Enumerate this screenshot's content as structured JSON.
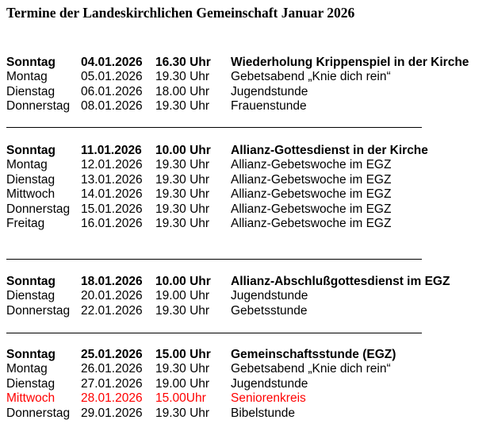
{
  "title": "Termine der Landeskirchlichen Gemeinschaft Januar 2026",
  "highlight_color": "#ff0000",
  "sections": [
    {
      "rows": [
        {
          "day": "Sonntag",
          "date": "04.01.2026",
          "time": "16.30 Uhr",
          "event": "Wiederholung Krippenspiel in der Kirche",
          "bold": true
        },
        {
          "day": "Montag",
          "date": "05.01.2026",
          "time": "19.30 Uhr",
          "event": "Gebetsabend „Knie dich rein“"
        },
        {
          "day": "Dienstag",
          "date": "06.01.2026",
          "time": "18.00 Uhr",
          "event": "Jugendstunde"
        },
        {
          "day": "Donnerstag",
          "date": "08.01.2026",
          "time": "19.30 Uhr",
          "event": "Frauenstunde"
        }
      ]
    },
    {
      "rows": [
        {
          "day": "Sonntag",
          "date": "11.01.2026",
          "time": "10.00 Uhr",
          "event": "Allianz-Gottesdienst in der Kirche",
          "bold": true
        },
        {
          "day": "Montag",
          "date": "12.01.2026",
          "time": "19.30 Uhr",
          "event": "Allianz-Gebetswoche im EGZ"
        },
        {
          "day": "Dienstag",
          "date": "13.01.2026",
          "time": "19.30 Uhr",
          "event": "Allianz-Gebetswoche im EGZ"
        },
        {
          "day": "Mittwoch",
          "date": "14.01.2026",
          "time": "19.30 Uhr",
          "event": "Allianz-Gebetswoche im EGZ"
        },
        {
          "day": "Donnerstag",
          "date": "15.01.2026",
          "time": "19.30 Uhr",
          "event": "Allianz-Gebetswoche im EGZ"
        },
        {
          "day": "Freitag",
          "date": "16.01.2026",
          "time": "19.30 Uhr",
          "event": "Allianz-Gebetswoche im EGZ"
        }
      ]
    },
    {
      "rows": [
        {
          "day": "Sonntag",
          "date": "18.01.2026",
          "time": "10.00 Uhr",
          "event": "Allianz-Abschlußgottesdienst im EGZ",
          "bold": true
        },
        {
          "day": "Dienstag",
          "date": "20.01.2026",
          "time": "19.00 Uhr",
          "event": "Jugendstunde"
        },
        {
          "day": "Donnerstag",
          "date": "22.01.2026",
          "time": "19.30 Uhr",
          "event": "Gebetsstunde"
        }
      ]
    },
    {
      "rows": [
        {
          "day": "Sonntag",
          "date": "25.01.2026",
          "time": "15.00  Uhr",
          "event": "Gemeinschaftsstunde (EGZ)",
          "bold": true
        },
        {
          "day": "Montag",
          "date": "26.01.2026",
          "time": "19.30 Uhr",
          "event": "Gebetsabend „Knie dich rein“"
        },
        {
          "day": "Dienstag",
          "date": "27.01.2026",
          "time": "19.00 Uhr",
          "event": "Jugendstunde"
        },
        {
          "day": "Mittwoch",
          "date": "28.01.2026",
          "time": "15.00Uhr",
          "event": "Seniorenkreis",
          "highlight": true
        },
        {
          "day": "Donnerstag",
          "date": "29.01.2026",
          "time": "19.30 Uhr",
          "event": "Bibelstunde"
        }
      ]
    }
  ]
}
